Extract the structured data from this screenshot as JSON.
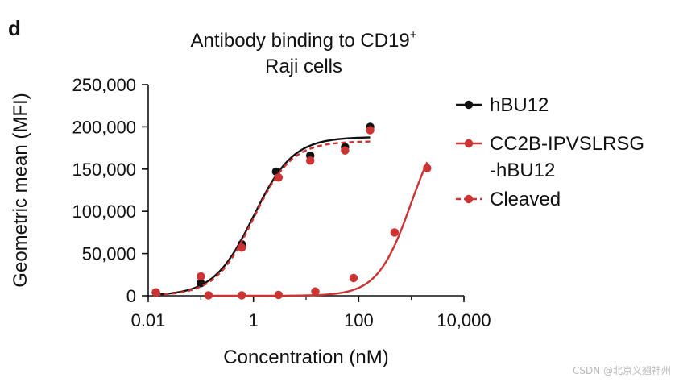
{
  "panel_label": "d",
  "watermark": "CSDN @北京义翘神州",
  "chart_data": {
    "type": "line",
    "title_line1": "Antibody binding to CD19",
    "title_superscript": "+",
    "title_line2": "Raji cells",
    "xlabel": "Concentration (nM)",
    "ylabel": "Geometric mean (MFI)",
    "xscale": "log",
    "xlim": [
      0.01,
      10000
    ],
    "ylim": [
      0,
      250000
    ],
    "xticks": [
      {
        "value": 0.01,
        "label": "0.01"
      },
      {
        "value": 1,
        "label": "1"
      },
      {
        "value": 100,
        "label": "100"
      },
      {
        "value": 10000,
        "label": "10,000"
      }
    ],
    "yticks": [
      {
        "value": 0,
        "label": "0"
      },
      {
        "value": 50000,
        "label": "50,000"
      },
      {
        "value": 100000,
        "label": "100,000"
      },
      {
        "value": 150000,
        "label": "150,000"
      },
      {
        "value": 200000,
        "label": "200,000"
      },
      {
        "value": 250000,
        "label": "250,000"
      }
    ],
    "grid": false,
    "legend_position": "right",
    "series": [
      {
        "name": "hBU12",
        "color": "#111111",
        "line_style": "solid",
        "x": [
          0.014,
          0.1,
          0.6,
          2.7,
          12,
          55,
          165
        ],
        "y": [
          4000,
          15000,
          61000,
          147000,
          166000,
          176000,
          200000
        ],
        "fit": {
          "bottom": 0,
          "top": 188000,
          "ec50": 1.0,
          "hill": 1.15
        }
      },
      {
        "name": "CC2B-IPVSLRSG -hBU12",
        "legend_lines": [
          "CC2B-IPVSLRSG",
          "-hBU12"
        ],
        "color": "#cc3333",
        "line_style": "solid",
        "x": [
          0.1,
          0.14,
          0.6,
          3,
          15,
          80,
          480,
          2000
        ],
        "y": [
          23000,
          500,
          500,
          1000,
          5000,
          21000,
          75000,
          151000
        ],
        "fit": {
          "bottom": 0,
          "top": 220000,
          "ec50": 1000,
          "hill": 1.35
        },
        "fit_x_range": [
          0.12,
          2000
        ]
      },
      {
        "name": "Cleaved",
        "color": "#cc3333",
        "line_style": "dashed",
        "x": [
          0.014,
          0.6,
          3,
          12,
          55,
          165
        ],
        "y": [
          4000,
          57000,
          140000,
          160000,
          172000,
          196000
        ],
        "fit": {
          "bottom": 0,
          "top": 183000,
          "ec50": 1.0,
          "hill": 1.2
        }
      }
    ]
  }
}
